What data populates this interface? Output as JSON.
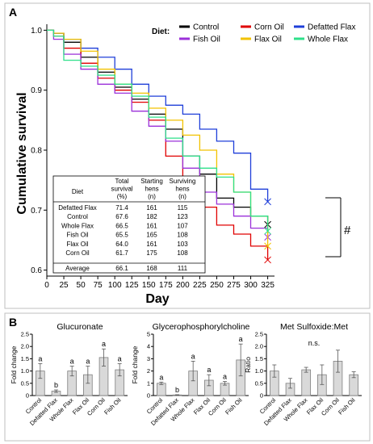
{
  "panel_a": {
    "letter": "A",
    "legend_title": "Diet:",
    "hash_mark": "#",
    "table": {
      "headers": [
        [
          "Diet"
        ],
        [
          "Total",
          "survival",
          "(%)"
        ],
        [
          "Starting",
          "hens",
          "(n)"
        ],
        [
          "Surviving",
          "hens",
          "(n)"
        ]
      ],
      "rows": [
        [
          "Defatted Flax",
          "71.4",
          "161",
          "115"
        ],
        [
          "Control",
          "67.6",
          "182",
          "123"
        ],
        [
          "Whole Flax",
          "66.5",
          "161",
          "107"
        ],
        [
          "Fish Oil",
          "65.5",
          "165",
          "108"
        ],
        [
          "Flax Oil",
          "64.0",
          "161",
          "103"
        ],
        [
          "Corn Oil",
          "61.7",
          "175",
          "108"
        ]
      ],
      "average": [
        "Average",
        "66.1",
        "168",
        "111"
      ]
    }
  },
  "panel_b": {
    "letter": "B"
  },
  "chart_data": [
    {
      "type": "line",
      "title": "",
      "xlabel": "Day",
      "ylabel": "Cumulative survival",
      "xlim": [
        0,
        335
      ],
      "ylim": [
        0.59,
        1.01
      ],
      "xticks": [
        "0",
        "25",
        "50",
        "75",
        "100",
        "125",
        "150",
        "175",
        "200",
        "225",
        "250",
        "275",
        "300",
        "325"
      ],
      "yticks": [
        "0.6",
        "0.7",
        "0.8",
        "0.9",
        "1.0"
      ],
      "legend_position": "top-right",
      "series": [
        {
          "name": "Control",
          "color": "#000000",
          "x": [
            0,
            10,
            25,
            50,
            75,
            100,
            125,
            150,
            175,
            200,
            225,
            250,
            275,
            300,
            325
          ],
          "y": [
            1.0,
            0.995,
            0.98,
            0.955,
            0.93,
            0.905,
            0.885,
            0.86,
            0.835,
            0.79,
            0.76,
            0.72,
            0.705,
            0.69,
            0.676
          ]
        },
        {
          "name": "Corn Oil",
          "color": "#e00000",
          "x": [
            0,
            10,
            25,
            50,
            75,
            100,
            125,
            150,
            175,
            200,
            225,
            250,
            275,
            300,
            325
          ],
          "y": [
            1.0,
            0.99,
            0.97,
            0.945,
            0.92,
            0.9,
            0.88,
            0.85,
            0.79,
            0.725,
            0.705,
            0.675,
            0.66,
            0.64,
            0.617
          ]
        },
        {
          "name": "Defatted Flax",
          "color": "#1f3fd9",
          "x": [
            0,
            10,
            25,
            50,
            75,
            100,
            125,
            150,
            175,
            200,
            225,
            250,
            275,
            300,
            325
          ],
          "y": [
            1.0,
            0.995,
            0.985,
            0.97,
            0.955,
            0.935,
            0.91,
            0.89,
            0.875,
            0.86,
            0.835,
            0.815,
            0.795,
            0.735,
            0.714
          ]
        },
        {
          "name": "Fish Oil",
          "color": "#9b30d9",
          "x": [
            0,
            10,
            25,
            50,
            75,
            100,
            125,
            150,
            175,
            200,
            225,
            250,
            275,
            300,
            325
          ],
          "y": [
            1.0,
            0.985,
            0.96,
            0.935,
            0.91,
            0.895,
            0.865,
            0.84,
            0.815,
            0.77,
            0.73,
            0.71,
            0.69,
            0.67,
            0.655
          ]
        },
        {
          "name": "Flax Oil",
          "color": "#f2c200",
          "x": [
            0,
            10,
            25,
            50,
            75,
            100,
            125,
            150,
            175,
            200,
            225,
            250,
            275,
            300,
            325
          ],
          "y": [
            1.0,
            0.995,
            0.985,
            0.965,
            0.935,
            0.91,
            0.895,
            0.87,
            0.85,
            0.825,
            0.8,
            0.76,
            0.73,
            0.69,
            0.64
          ]
        },
        {
          "name": "Whole Flax",
          "color": "#2ee08a",
          "x": [
            0,
            10,
            25,
            50,
            75,
            100,
            125,
            150,
            175,
            200,
            225,
            250,
            275,
            300,
            325
          ],
          "y": [
            1.0,
            0.99,
            0.95,
            0.94,
            0.925,
            0.91,
            0.89,
            0.855,
            0.82,
            0.79,
            0.77,
            0.755,
            0.73,
            0.69,
            0.665
          ]
        }
      ]
    },
    {
      "type": "bar",
      "title": "Glucuronate",
      "ylabel": "Fold change",
      "ylim": [
        0,
        2.5
      ],
      "yticks": [
        "0",
        "0.5",
        "1.0",
        "1.5",
        "2.0",
        "2.5"
      ],
      "categories": [
        "Control",
        "Defatted Flax",
        "Whole Flax",
        "Flax Oil",
        "Corn Oil",
        "Fish Oil"
      ],
      "values": [
        1.0,
        0.18,
        1.0,
        0.85,
        1.55,
        1.05
      ],
      "errors": [
        0.3,
        0.05,
        0.2,
        0.35,
        0.35,
        0.25
      ],
      "labels": [
        "a",
        "b",
        "a",
        "a",
        "a",
        "a"
      ]
    },
    {
      "type": "bar",
      "title": "Glycerophosphorylcholine",
      "ylabel": "Fold change",
      "ylim": [
        0,
        5
      ],
      "yticks": [
        "0",
        "1",
        "2",
        "3",
        "4",
        "5"
      ],
      "categories": [
        "Control",
        "Defatted Flax",
        "Whole Flax",
        "Flax Oil",
        "Corn Oil",
        "Fish Oil"
      ],
      "values": [
        1.0,
        0.05,
        2.0,
        1.25,
        1.0,
        2.9
      ],
      "errors": [
        0.1,
        0.02,
        0.8,
        0.45,
        0.15,
        1.3
      ],
      "labels": [
        "a",
        "b",
        "a",
        "a",
        "a",
        "a"
      ]
    },
    {
      "type": "bar",
      "title": "Met Sulfoxide:Met",
      "ylabel": "Ratio",
      "ylim": [
        0,
        2.5
      ],
      "yticks": [
        "0",
        "0.5",
        "1.0",
        "1.5",
        "2.0",
        "2.5"
      ],
      "categories": [
        "Control",
        "Defatted Flax",
        "Whole Flax",
        "Flax Oil",
        "Corn Oil",
        "Fish Oil"
      ],
      "values": [
        1.0,
        0.5,
        1.05,
        0.85,
        1.4,
        0.85
      ],
      "errors": [
        0.25,
        0.2,
        0.1,
        0.4,
        0.45,
        0.12
      ],
      "labels": [],
      "annotation": "n.s."
    }
  ]
}
